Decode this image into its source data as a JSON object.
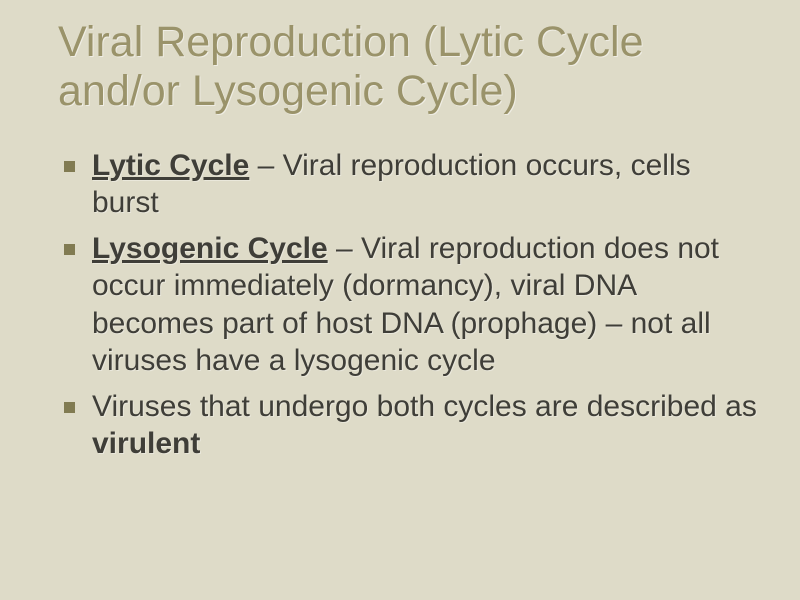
{
  "background_color": "#dedbc8",
  "title_color": "#9a936a",
  "text_color": "#3f3e38",
  "bullet_color": "#817b52",
  "title_fontsize": 43,
  "body_fontsize": 30,
  "title": "Viral Reproduction (Lytic Cycle and/or Lysogenic Cycle)",
  "bullets": [
    {
      "term": "Lytic Cycle",
      "rest": " – Viral reproduction occurs, cells burst"
    },
    {
      "term": "Lysogenic Cycle",
      "rest": " – Viral reproduction does not occur immediately (dormancy), viral DNA becomes part of host DNA (prophage) – not all viruses have a lysogenic cycle"
    },
    {
      "plain": "Viruses that undergo both cycles are described as ",
      "emph": "virulent"
    }
  ]
}
